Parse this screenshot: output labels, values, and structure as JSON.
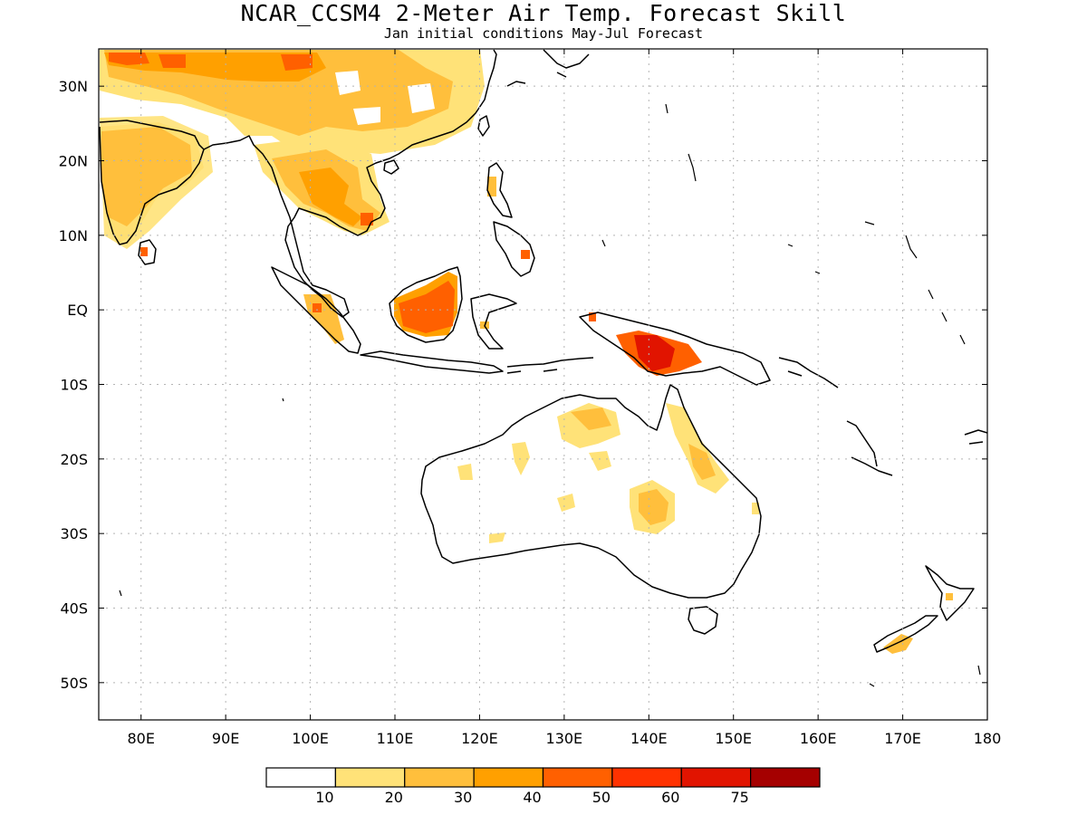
{
  "title": "NCAR_CCSM4 2-Meter Air Temp. Forecast Skill",
  "subtitle": "Jan initial conditions  May-Jul Forecast",
  "map": {
    "lon_range": [
      75,
      180
    ],
    "lat_range": [
      -55,
      35
    ],
    "lon_ticks": [
      {
        "v": 80,
        "label": "80E"
      },
      {
        "v": 90,
        "label": "90E"
      },
      {
        "v": 100,
        "label": "100E"
      },
      {
        "v": 110,
        "label": "110E"
      },
      {
        "v": 120,
        "label": "120E"
      },
      {
        "v": 130,
        "label": "130E"
      },
      {
        "v": 140,
        "label": "140E"
      },
      {
        "v": 150,
        "label": "150E"
      },
      {
        "v": 160,
        "label": "160E"
      },
      {
        "v": 170,
        "label": "170E"
      },
      {
        "v": 180,
        "label": "180"
      }
    ],
    "lat_ticks": [
      {
        "v": 30,
        "label": "30N"
      },
      {
        "v": 20,
        "label": "20N"
      },
      {
        "v": 10,
        "label": "10N"
      },
      {
        "v": 0,
        "label": "EQ"
      },
      {
        "v": -10,
        "label": "10S"
      },
      {
        "v": -20,
        "label": "20S"
      },
      {
        "v": -30,
        "label": "30S"
      },
      {
        "v": -40,
        "label": "40S"
      },
      {
        "v": -50,
        "label": "50S"
      }
    ]
  },
  "colorbar": {
    "colors": [
      "#ffffff",
      "#ffe278",
      "#ffbf3c",
      "#ffa000",
      "#ff6000",
      "#ff3200",
      "#e11400",
      "#a50000"
    ],
    "labels": [
      "10",
      "20",
      "30",
      "40",
      "50",
      "60",
      "75"
    ]
  }
}
